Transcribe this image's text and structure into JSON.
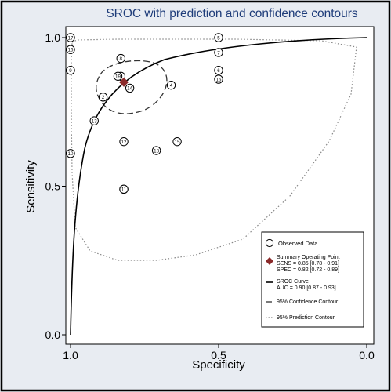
{
  "chart_data": {
    "type": "scatter",
    "title": "SROC with prediction and confidence contours",
    "xlabel": "Specificity",
    "ylabel": "Sensitivity",
    "xlim": [
      1.0,
      0.0
    ],
    "ylim": [
      0.0,
      1.0
    ],
    "x_reversed": true,
    "x_ticks": [
      "1.0",
      "0.5",
      "0.0"
    ],
    "x_tick_values": [
      1.0,
      0.5,
      0.0
    ],
    "y_ticks": [
      "0.0",
      "0.5",
      "1.0"
    ],
    "y_tick_values": [
      0.0,
      0.5,
      1.0
    ],
    "grid": false,
    "legend_position": "bottom-right",
    "observed_data": [
      {
        "label": "1",
        "spec": 0.82,
        "sens": 0.49
      },
      {
        "label": "2",
        "spec": 0.89,
        "sens": 0.8
      },
      {
        "label": "3",
        "spec": 0.83,
        "sens": 0.87
      },
      {
        "label": "4",
        "spec": 0.66,
        "sens": 0.84
      },
      {
        "label": "5",
        "spec": 0.5,
        "sens": 1.0
      },
      {
        "label": "6",
        "spec": 0.5,
        "sens": 0.89
      },
      {
        "label": "7",
        "spec": 0.5,
        "sens": 0.95
      },
      {
        "label": "8",
        "spec": 0.83,
        "sens": 0.93
      },
      {
        "label": "9",
        "spec": 1.0,
        "sens": 0.89
      },
      {
        "label": "10",
        "spec": 1.0,
        "sens": 0.61
      },
      {
        "label": "11",
        "spec": 0.82,
        "sens": 0.49
      },
      {
        "label": "12",
        "spec": 0.82,
        "sens": 0.65
      },
      {
        "label": "13",
        "spec": 0.92,
        "sens": 0.72
      },
      {
        "label": "14",
        "spec": 0.8,
        "sens": 0.83
      },
      {
        "label": "15",
        "spec": 0.64,
        "sens": 0.65
      },
      {
        "label": "16",
        "spec": 0.5,
        "sens": 0.86
      },
      {
        "label": "16",
        "spec": 1.0,
        "sens": 0.96
      },
      {
        "label": "17",
        "spec": 1.0,
        "sens": 1.0
      },
      {
        "label": "18",
        "spec": 0.71,
        "sens": 0.62
      },
      {
        "label": "19",
        "spec": 0.84,
        "sens": 0.87
      }
    ],
    "summary_point": {
      "spec": 0.82,
      "sens": 0.85
    },
    "sroc_curve_auc": 0.9,
    "legend": [
      {
        "key": "observed",
        "text": "Observed Data"
      },
      {
        "key": "summary",
        "text": "Summary Operating Point"
      },
      {
        "key": "summary_sens",
        "text": "SENS = 0.85 [0.78 - 0.91]"
      },
      {
        "key": "summary_spec",
        "text": "SPEC = 0.82 [0.72 - 0.89]"
      },
      {
        "key": "sroc",
        "text": "SROC Curve"
      },
      {
        "key": "sroc_auc",
        "text": "AUC = 0.90 [0.87 - 0.93]"
      },
      {
        "key": "conf",
        "text": "95% Confidence Contour"
      },
      {
        "key": "pred",
        "text": "95% Prediction Contour"
      }
    ],
    "colors": {
      "title": "#1f3d7a",
      "summary_marker": "#8b2a2a",
      "outer_background": "#e8ecf2"
    }
  }
}
